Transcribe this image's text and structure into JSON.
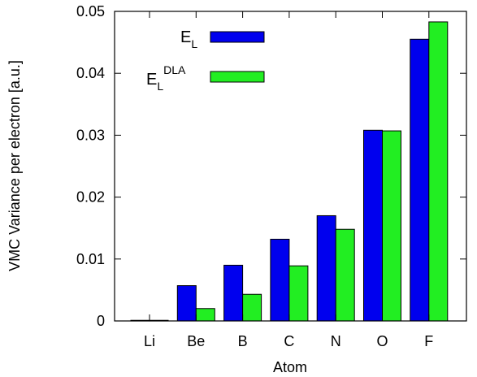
{
  "chart_data": {
    "type": "bar",
    "title": "",
    "xlabel": "Atom",
    "ylabel": "VMC Variance per electron [a.u.]",
    "categories": [
      "Li",
      "Be",
      "B",
      "C",
      "N",
      "O",
      "F"
    ],
    "ylim": [
      0,
      0.05
    ],
    "yticks": [
      "0",
      "0.01",
      "0.02",
      "0.03",
      "0.04",
      "0.05"
    ],
    "grid": false,
    "legend_position": "top-left",
    "series": [
      {
        "legend_base": "E",
        "legend_sub": "L",
        "legend_sup": "",
        "color": "#0000ee",
        "values": [
          0.0001,
          0.0057,
          0.009,
          0.0132,
          0.017,
          0.0308,
          0.0455
        ]
      },
      {
        "legend_base": "E",
        "legend_sub": "L",
        "legend_sup": "DLA",
        "color": "#22ee22",
        "values": [
          0.0001,
          0.002,
          0.0043,
          0.0089,
          0.0148,
          0.0307,
          0.0483
        ]
      }
    ]
  }
}
